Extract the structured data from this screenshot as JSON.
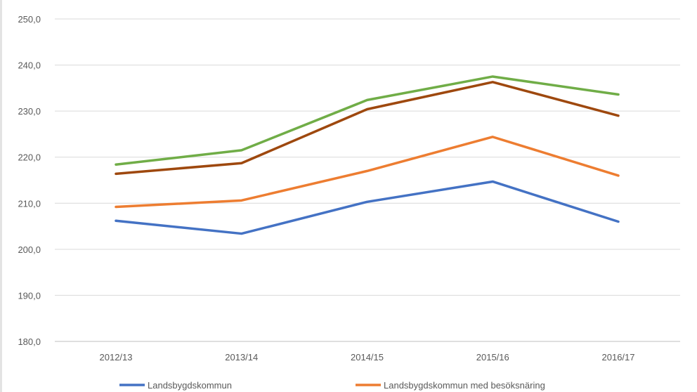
{
  "chart_data": {
    "type": "line",
    "title": "",
    "xlabel": "",
    "ylabel": "",
    "categories": [
      "2012/13",
      "2013/14",
      "2014/15",
      "2015/16",
      "2016/17"
    ],
    "ylim": [
      180,
      250
    ],
    "yticks": [
      180,
      190,
      200,
      210,
      220,
      230,
      240,
      250
    ],
    "ytick_labels": [
      "180,0",
      "190,0",
      "200,0",
      "210,0",
      "220,0",
      "230,0",
      "240,0",
      "250,0"
    ],
    "grid": true,
    "legend_position": "bottom",
    "series": [
      {
        "name": "Landsbygdskommun",
        "color": "#4472C4",
        "values": [
          206.2,
          203.4,
          210.3,
          214.7,
          206.0
        ]
      },
      {
        "name": "Landsbygdskommun med besöksnäring",
        "color": "#ED7D31",
        "values": [
          209.2,
          210.6,
          217.0,
          224.4,
          216.0
        ]
      },
      {
        "color": "#9E480E",
        "values": [
          216.4,
          218.7,
          230.4,
          236.3,
          229.0
        ]
      },
      {
        "color": "#70AD47",
        "values": [
          218.4,
          221.5,
          232.4,
          237.5,
          233.6
        ]
      }
    ]
  }
}
